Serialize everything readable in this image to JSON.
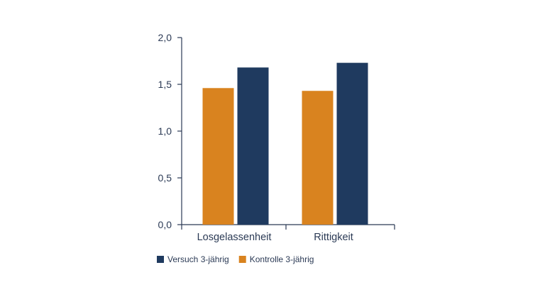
{
  "chart_data": {
    "type": "bar",
    "categories": [
      "Losgelassenheit",
      "Rittigkeit"
    ],
    "series": [
      {
        "name": "Kontrolle 3-jährig",
        "values": [
          1.46,
          1.43
        ],
        "color": "#d9831f"
      },
      {
        "name": "Versuch 3-jährig",
        "values": [
          1.68,
          1.73
        ],
        "color": "#1f3a5f"
      }
    ],
    "legend_order": [
      "Versuch 3-jährig",
      "Kontrolle 3-jährig"
    ],
    "y_ticks": [
      "0,0",
      "0,5",
      "1,0",
      "1,5",
      "2,0"
    ],
    "ylim": [
      0,
      2
    ],
    "title": "",
    "xlabel": "",
    "ylabel": "",
    "grid": false,
    "legend_position": "bottom-left",
    "axis_color": "#2b3a55"
  }
}
